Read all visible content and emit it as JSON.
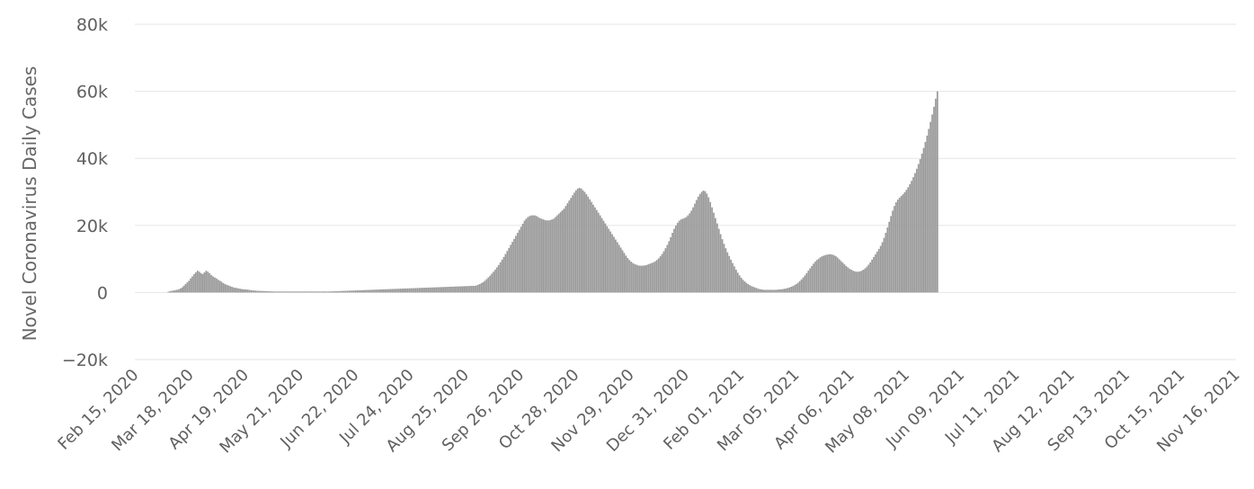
{
  "chart_data": {
    "type": "bar",
    "title": "",
    "xlabel": "",
    "ylabel": "Novel Coronavirus Daily Cases",
    "ylim": [
      -20000,
      80000
    ],
    "yticks": [
      -20000,
      0,
      20000,
      40000,
      60000,
      80000
    ],
    "ytick_labels": [
      "−20k",
      "0",
      "20k",
      "40k",
      "60k",
      "80k"
    ],
    "x_start_date": "2020-02-15",
    "x_end_date": "2021-11-16",
    "xtick_labels": [
      "Feb 15, 2020",
      "Mar 18, 2020",
      "Apr 19, 2020",
      "May 21, 2020",
      "Jun 22, 2020",
      "Jul 24, 2020",
      "Aug 25, 2020",
      "Sep 26, 2020",
      "Oct 28, 2020",
      "Nov 29, 2020",
      "Dec 31, 2020",
      "Feb 01, 2021",
      "Mar 05, 2021",
      "Apr 06, 2021",
      "May 08, 2021",
      "Jun 09, 2021",
      "Jul 11, 2021",
      "Aug 12, 2021",
      "Sep 13, 2021",
      "Oct 15, 2021",
      "Nov 16, 2021"
    ],
    "grid": true,
    "legend": "none",
    "bar_color": "#999999",
    "series": [
      {
        "x_start": "2020-02-15",
        "interval": "daily",
        "values": [
          0,
          0,
          0,
          0,
          0,
          0,
          0,
          0,
          0,
          0,
          0,
          0,
          0,
          0,
          0,
          0,
          0,
          0,
          0,
          200,
          400,
          500,
          600,
          700,
          800,
          900,
          1200,
          1500,
          2000,
          2500,
          3000,
          3500,
          4200,
          4800,
          5500,
          6000,
          6500,
          6200,
          5800,
          5500,
          6000,
          6500,
          6200,
          5800,
          5200,
          4800,
          4500,
          4200,
          3800,
          3500,
          3200,
          2800,
          2500,
          2300,
          2100,
          1900,
          1700,
          1500,
          1400,
          1300,
          1200,
          1100,
          1000,
          950,
          900,
          850,
          800,
          700,
          650,
          600,
          550,
          500,
          480,
          460,
          440,
          420,
          400,
          380,
          360,
          340,
          320,
          300,
          300,
          300,
          300,
          300,
          300,
          300,
          300,
          300,
          300,
          300,
          300,
          300,
          300,
          300,
          300,
          300,
          300,
          300,
          300,
          300,
          300,
          300,
          300,
          300,
          300,
          300,
          300,
          300,
          300,
          300,
          300,
          320,
          340,
          360,
          380,
          400,
          420,
          440,
          460,
          480,
          500,
          520,
          540,
          560,
          580,
          600,
          620,
          640,
          660,
          680,
          700,
          720,
          740,
          760,
          780,
          800,
          820,
          840,
          860,
          880,
          900,
          920,
          940,
          960,
          980,
          1000,
          1020,
          1040,
          1060,
          1080,
          1100,
          1120,
          1140,
          1160,
          1180,
          1200,
          1220,
          1240,
          1260,
          1280,
          1300,
          1320,
          1340,
          1360,
          1380,
          1400,
          1420,
          1440,
          1460,
          1480,
          1500,
          1520,
          1540,
          1560,
          1580,
          1600,
          1620,
          1640,
          1660,
          1680,
          1700,
          1720,
          1740,
          1760,
          1780,
          1800,
          1820,
          1840,
          1860,
          1880,
          1900,
          1920,
          1940,
          1960,
          1980,
          2000,
          2100,
          2300,
          2500,
          2800,
          3100,
          3500,
          4000,
          4500,
          5000,
          5600,
          6200,
          6800,
          7500,
          8200,
          9000,
          9800,
          10600,
          11500,
          12400,
          13300,
          14200,
          15100,
          16000,
          16900,
          17800,
          18700,
          19600,
          20500,
          21400,
          22000,
          22500,
          22800,
          23000,
          23000,
          23000,
          22800,
          22500,
          22200,
          22000,
          21800,
          21600,
          21500,
          21500,
          21600,
          21800,
          22000,
          22500,
          23000,
          23500,
          24000,
          24500,
          25000,
          25800,
          26600,
          27400,
          28200,
          29000,
          29800,
          30500,
          31000,
          31200,
          31000,
          30500,
          30000,
          29300,
          28600,
          27800,
          27000,
          26200,
          25400,
          24600,
          23800,
          23000,
          22200,
          21400,
          20600,
          19800,
          19000,
          18200,
          17400,
          16600,
          15800,
          15000,
          14200,
          13400,
          12600,
          11800,
          11000,
          10300,
          9700,
          9200,
          8800,
          8500,
          8300,
          8100,
          8000,
          8000,
          8000,
          8100,
          8200,
          8400,
          8600,
          8800,
          9000,
          9300,
          9700,
          10200,
          10800,
          11500,
          12300,
          13200,
          14200,
          15300,
          16500,
          17800,
          19000,
          20000,
          20800,
          21400,
          21800,
          22000,
          22200,
          22500,
          23000,
          23600,
          24400,
          25400,
          26500,
          27600,
          28600,
          29400,
          30000,
          30400,
          30200,
          29500,
          28400,
          27000,
          25400,
          23800,
          22200,
          20600,
          19000,
          17400,
          15900,
          14500,
          13200,
          12000,
          10900,
          9800,
          8800,
          7800,
          6800,
          5900,
          5100,
          4400,
          3800,
          3300,
          2900,
          2500,
          2200,
          1900,
          1700,
          1500,
          1300,
          1100,
          1000,
          900,
          800,
          800,
          800,
          800,
          800,
          800,
          800,
          800,
          850,
          900,
          950,
          1000,
          1100,
          1200,
          1350,
          1500,
          1700,
          1900,
          2200,
          2500,
          2900,
          3400,
          3900,
          4500,
          5100,
          5800,
          6500,
          7200,
          7900,
          8600,
          9200,
          9700,
          10100,
          10500,
          10800,
          11000,
          11200,
          11300,
          11400,
          11400,
          11300,
          11100,
          10800,
          10400,
          9900,
          9400,
          8900,
          8400,
          7900,
          7500,
          7100,
          6800,
          6500,
          6300,
          6200,
          6200,
          6300,
          6500,
          6800,
          7200,
          7700,
          8300,
          9000,
          9800,
          10600,
          11400,
          12200,
          13000,
          13900,
          15000,
          16300,
          17800,
          19400,
          21100,
          22800,
          24400,
          25800,
          26900,
          27700,
          28300,
          28800,
          29300,
          29900,
          30600,
          31400,
          32300,
          33300,
          34400,
          35600,
          36900,
          38300,
          39800,
          41400,
          43100,
          44900,
          46800,
          48800,
          50900,
          53100,
          55400,
          57800,
          60000
        ]
      }
    ]
  }
}
